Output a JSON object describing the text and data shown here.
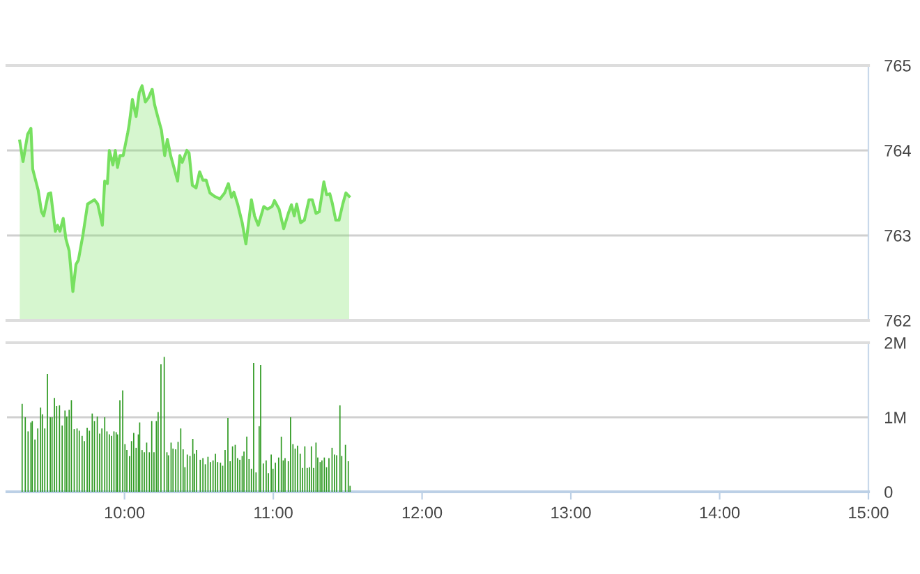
{
  "chart_data": [
    {
      "type": "area",
      "xlim": [
        9.21,
        15
      ],
      "ylim": [
        762,
        765
      ],
      "yticks": [
        762,
        763,
        764,
        765
      ],
      "grid": "y",
      "tick_labels": "y",
      "series": [
        {
          "color": "#77e060",
          "x": [
            9.296,
            9.318,
            9.349,
            9.371,
            9.383,
            9.42,
            9.442,
            9.457,
            9.488,
            9.504,
            9.535,
            9.55,
            9.566,
            9.588,
            9.606,
            9.628,
            9.653,
            9.674,
            9.69,
            9.721,
            9.752,
            9.798,
            9.82,
            9.851,
            9.867,
            9.885,
            9.898,
            9.922,
            9.938,
            9.953,
            9.969,
            9.991,
            10.022,
            10.031,
            10.053,
            10.078,
            10.099,
            10.118,
            10.14,
            10.161,
            10.186,
            10.202,
            10.223,
            10.248,
            10.27,
            10.288,
            10.31,
            10.332,
            10.357,
            10.372,
            10.388,
            10.419,
            10.434,
            10.456,
            10.481,
            10.505,
            10.527,
            10.549,
            10.574,
            10.605,
            10.642,
            10.673,
            10.698,
            10.719,
            10.735,
            10.76,
            10.791,
            10.816,
            10.853,
            10.874,
            10.899,
            10.936,
            10.961,
            10.992,
            11.008,
            11.039,
            11.07,
            11.101,
            11.122,
            11.141,
            11.157,
            11.184,
            11.209,
            11.24,
            11.262,
            11.287,
            11.309,
            11.34,
            11.358,
            11.38,
            11.395,
            11.42,
            11.442,
            11.467,
            11.488,
            11.51
          ],
          "values": [
            764.11,
            763.87,
            764.19,
            764.26,
            763.78,
            763.53,
            763.28,
            763.23,
            763.49,
            763.5,
            763.05,
            763.12,
            763.05,
            763.2,
            762.96,
            762.82,
            762.34,
            762.66,
            762.71,
            763.01,
            763.37,
            763.42,
            763.37,
            763.12,
            763.64,
            763.61,
            764.0,
            763.83,
            764.0,
            763.8,
            763.94,
            763.94,
            764.21,
            764.3,
            764.6,
            764.4,
            764.68,
            764.76,
            764.57,
            764.62,
            764.72,
            764.54,
            764.4,
            764.24,
            763.94,
            764.13,
            763.94,
            763.8,
            763.64,
            763.94,
            763.86,
            764.0,
            763.97,
            763.59,
            763.56,
            763.75,
            763.65,
            763.65,
            763.5,
            763.46,
            763.43,
            763.5,
            763.61,
            763.45,
            763.51,
            763.37,
            763.15,
            762.9,
            763.42,
            763.23,
            763.12,
            763.34,
            763.31,
            763.34,
            763.41,
            763.31,
            763.08,
            763.26,
            763.36,
            763.23,
            763.37,
            763.15,
            763.18,
            763.42,
            763.42,
            763.26,
            763.28,
            763.63,
            763.48,
            763.49,
            763.39,
            763.18,
            763.18,
            763.37,
            763.5,
            763.46
          ]
        }
      ]
    },
    {
      "type": "bar",
      "xlim": [
        9.21,
        15
      ],
      "ylim": [
        0,
        2
      ],
      "yticks": [
        0,
        {
          "value": 1,
          "label": "1M"
        },
        {
          "value": 2,
          "label": "2M"
        }
      ],
      "xticks": [
        {
          "value": 10,
          "label": "10:00"
        },
        {
          "value": 11,
          "label": "11:00"
        },
        {
          "value": 12,
          "label": "12:00"
        },
        {
          "value": 13,
          "label": "13:00"
        },
        {
          "value": 14,
          "label": "14:00"
        },
        {
          "value": 15,
          "label": "15:00"
        }
      ],
      "grid": "y",
      "series": [
        {
          "color": "#2f9a22",
          "x": [
            9.312,
            9.333,
            9.352,
            9.371,
            9.38,
            9.398,
            9.417,
            9.436,
            9.448,
            9.464,
            9.482,
            9.501,
            9.513,
            9.529,
            9.544,
            9.563,
            9.581,
            9.6,
            9.612,
            9.628,
            9.643,
            9.662,
            9.681,
            9.696,
            9.715,
            9.73,
            9.749,
            9.764,
            9.783,
            9.798,
            9.817,
            9.833,
            9.848,
            9.867,
            9.882,
            9.898,
            9.913,
            9.929,
            9.944,
            9.953,
            9.969,
            9.988,
            10.003,
            10.016,
            10.034,
            10.047,
            10.062,
            10.078,
            10.093,
            10.102,
            10.118,
            10.133,
            10.149,
            10.167,
            10.183,
            10.198,
            10.214,
            10.226,
            10.245,
            10.267,
            10.285,
            10.295,
            10.313,
            10.326,
            10.344,
            10.36,
            10.378,
            10.394,
            10.406,
            10.422,
            10.44,
            10.459,
            10.471,
            10.484,
            10.509,
            10.527,
            10.543,
            10.561,
            10.577,
            10.595,
            10.611,
            10.626,
            10.645,
            10.66,
            10.676,
            10.695,
            10.71,
            10.726,
            10.744,
            10.76,
            10.775,
            10.791,
            10.803,
            10.822,
            10.837,
            10.853,
            10.868,
            10.884,
            10.905,
            10.915,
            10.933,
            10.952,
            10.967,
            10.986,
            10.998,
            11.014,
            11.036,
            11.054,
            11.067,
            11.079,
            11.101,
            11.116,
            11.132,
            11.147,
            11.163,
            11.181,
            11.197,
            11.212,
            11.228,
            11.243,
            11.256,
            11.271,
            11.287,
            11.299,
            11.315,
            11.327,
            11.343,
            11.358,
            11.374,
            11.395,
            11.411,
            11.426,
            11.448,
            11.46,
            11.485,
            11.504,
            11.516
          ],
          "values": [
            1.18,
            1.0,
            0.81,
            0.93,
            0.95,
            0.7,
            0.85,
            1.13,
            1.04,
            0.85,
            1.58,
            1.0,
            1.0,
            1.26,
            1.15,
            1.16,
            0.89,
            1.09,
            1.01,
            1.1,
            1.23,
            0.84,
            0.85,
            0.82,
            0.75,
            0.68,
            0.86,
            0.82,
            1.05,
            0.95,
            1.01,
            0.78,
            0.85,
            1.0,
            0.81,
            0.77,
            0.75,
            0.81,
            0.8,
            0.77,
            1.23,
            1.36,
            0.64,
            0.56,
            0.48,
            0.68,
            0.79,
            0.59,
            0.77,
            0.93,
            0.56,
            0.53,
            0.66,
            0.53,
            0.95,
            0.53,
            0.95,
            1.07,
            1.71,
            1.81,
            0.53,
            0.49,
            0.66,
            0.58,
            0.57,
            0.67,
            0.85,
            0.57,
            0.33,
            0.5,
            0.48,
            0.71,
            0.51,
            0.56,
            0.43,
            0.45,
            0.37,
            0.47,
            0.4,
            0.42,
            0.51,
            0.4,
            0.39,
            0.35,
            0.56,
            0.99,
            0.41,
            0.61,
            0.63,
            0.45,
            0.43,
            0.48,
            0.54,
            0.74,
            0.44,
            0.31,
            1.73,
            0.26,
            0.88,
            1.7,
            0.38,
            0.42,
            0.25,
            0.5,
            0.31,
            0.39,
            0.46,
            0.74,
            0.42,
            0.45,
            0.41,
            1.0,
            0.64,
            0.58,
            0.62,
            0.51,
            0.32,
            0.61,
            0.32,
            0.33,
            0.61,
            0.32,
            0.66,
            0.46,
            0.4,
            0.42,
            0.46,
            0.33,
            0.45,
            0.59,
            0.5,
            0.49,
            1.16,
            0.48,
            0.63,
            0.41,
            0.08
          ]
        }
      ]
    }
  ]
}
